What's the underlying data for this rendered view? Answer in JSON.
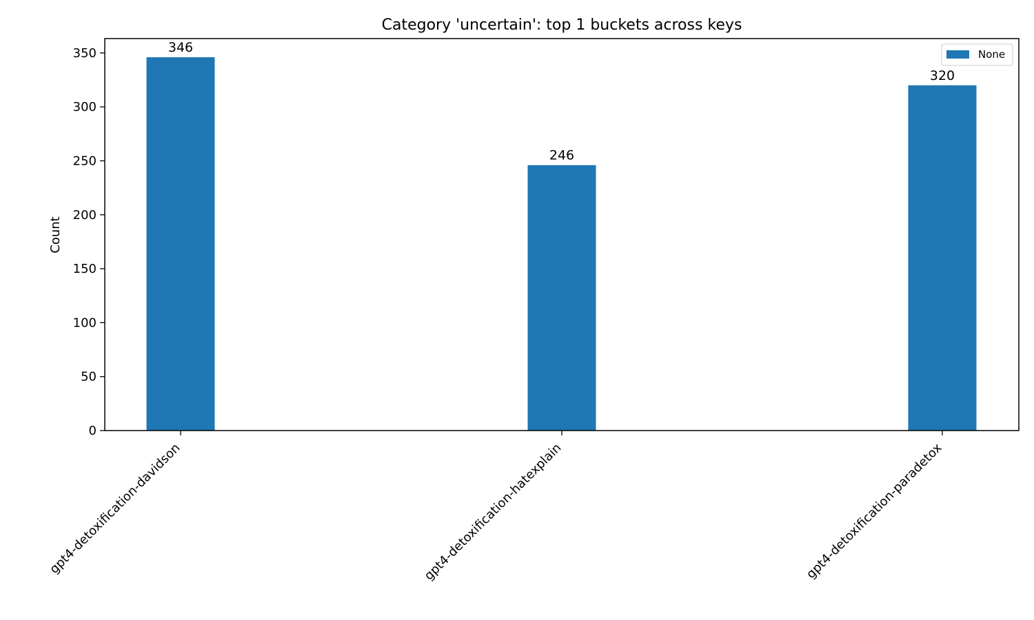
{
  "chart_data": {
    "type": "bar",
    "title": "Category 'uncertain': top 1 buckets across keys",
    "xlabel": "",
    "ylabel": "Count",
    "categories": [
      "gpt4-detoxification-davidson",
      "gpt4-detoxification-hatexplain",
      "gpt4-detoxification-paradetox"
    ],
    "series": [
      {
        "name": "None",
        "values": [
          346,
          246,
          320
        ],
        "color": "#1f77b4"
      }
    ],
    "data_labels": [
      "346",
      "246",
      "320"
    ],
    "y_ticks": [
      0,
      50,
      100,
      150,
      200,
      250,
      300,
      350
    ],
    "ylim": [
      0,
      363.3
    ],
    "grid": false,
    "legend_position": "top-right"
  }
}
